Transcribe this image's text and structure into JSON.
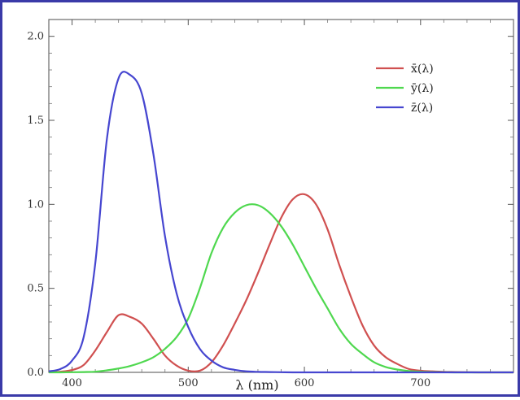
{
  "chart_data": {
    "type": "line",
    "title": "",
    "xlabel": "λ (nm)",
    "ylabel": "",
    "xlim": [
      380,
      780
    ],
    "ylim": [
      0,
      2.1
    ],
    "x_ticks": [
      400,
      500,
      600,
      700
    ],
    "y_ticks": [
      0.0,
      0.5,
      1.0,
      1.5,
      2.0
    ],
    "x_tick_labels": [
      "400",
      "500",
      "600",
      "700"
    ],
    "y_tick_labels": [
      "0.0",
      "0.5",
      "1.0",
      "1.5",
      "2.0"
    ],
    "grid": false,
    "legend_position": "top-right",
    "series": [
      {
        "name": "x̄(λ)",
        "color": "#d05050",
        "x": [
          380,
          390,
          400,
          410,
          420,
          430,
          440,
          450,
          460,
          470,
          480,
          490,
          500,
          510,
          520,
          530,
          540,
          550,
          560,
          570,
          580,
          590,
          600,
          610,
          620,
          630,
          640,
          650,
          660,
          670,
          680,
          690,
          700,
          710,
          720,
          730,
          740,
          750,
          760,
          770,
          780
        ],
        "y": [
          0.001,
          0.004,
          0.014,
          0.044,
          0.13,
          0.24,
          0.34,
          0.33,
          0.29,
          0.2,
          0.1,
          0.04,
          0.01,
          0.01,
          0.06,
          0.16,
          0.29,
          0.43,
          0.59,
          0.76,
          0.92,
          1.03,
          1.06,
          1.0,
          0.85,
          0.64,
          0.45,
          0.28,
          0.16,
          0.09,
          0.05,
          0.02,
          0.01,
          0.006,
          0.003,
          0.002,
          0.001,
          0.0,
          0.0,
          0.0,
          0.0
        ]
      },
      {
        "name": "ȳ(λ)",
        "color": "#4fd84f",
        "x": [
          380,
          390,
          400,
          410,
          420,
          430,
          440,
          450,
          460,
          470,
          480,
          490,
          500,
          510,
          520,
          530,
          540,
          550,
          560,
          570,
          580,
          590,
          600,
          610,
          620,
          630,
          640,
          650,
          660,
          670,
          680,
          690,
          700,
          710,
          720,
          730,
          740,
          750,
          760,
          770,
          780
        ],
        "y": [
          0.0,
          0.0,
          0.001,
          0.002,
          0.004,
          0.012,
          0.023,
          0.038,
          0.06,
          0.09,
          0.14,
          0.21,
          0.32,
          0.5,
          0.71,
          0.86,
          0.95,
          0.995,
          0.995,
          0.95,
          0.87,
          0.76,
          0.63,
          0.5,
          0.38,
          0.26,
          0.17,
          0.11,
          0.06,
          0.032,
          0.017,
          0.008,
          0.004,
          0.002,
          0.001,
          0.0,
          0.0,
          0.0,
          0.0,
          0.0,
          0.0
        ]
      },
      {
        "name": "z̄(λ)",
        "color": "#4646d0",
        "x": [
          380,
          390,
          400,
          410,
          420,
          430,
          440,
          450,
          460,
          470,
          480,
          490,
          500,
          510,
          520,
          530,
          540,
          550,
          560,
          570,
          580,
          590,
          600,
          610,
          620,
          630,
          640,
          650,
          660,
          670,
          680,
          690,
          700,
          710,
          720,
          730,
          740,
          750,
          760,
          770,
          780
        ],
        "y": [
          0.006,
          0.02,
          0.07,
          0.21,
          0.65,
          1.39,
          1.75,
          1.77,
          1.66,
          1.3,
          0.81,
          0.47,
          0.27,
          0.14,
          0.07,
          0.03,
          0.015,
          0.006,
          0.003,
          0.002,
          0.001,
          0.0,
          0.0,
          0.0,
          0.0,
          0.0,
          0.0,
          0.0,
          0.0,
          0.0,
          0.0,
          0.0,
          0.0,
          0.0,
          0.0,
          0.0,
          0.0,
          0.0,
          0.0,
          0.0,
          0.0
        ]
      }
    ]
  }
}
